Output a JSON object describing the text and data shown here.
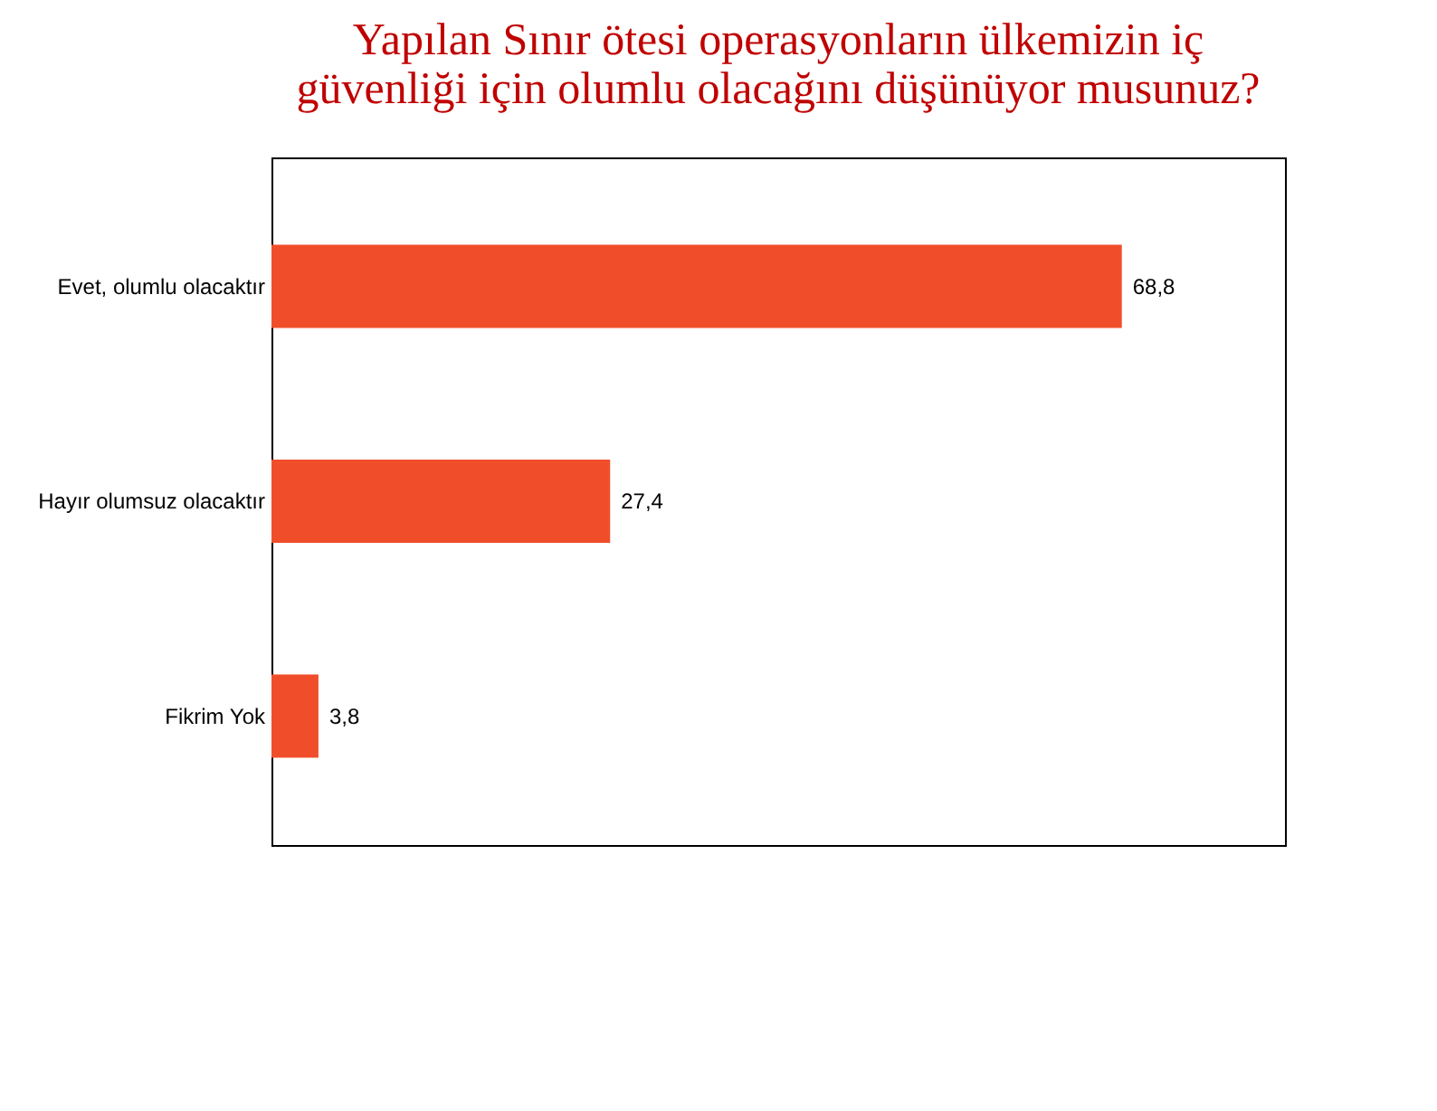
{
  "chart_data": {
    "type": "bar",
    "orientation": "horizontal",
    "title": "Yapılan Sınır ötesi operasyonların ülkemizin iç güvenliği için olumlu olacağını düşünüyor musunuz?",
    "categories": [
      "Evet, olumlu olacaktır",
      "Hayır olumsuz olacaktır",
      "Fikrim Yok"
    ],
    "values": [
      68.8,
      27.4,
      3.8
    ],
    "color": "#f04e2a",
    "value_labels": [
      "68,8",
      "27,4",
      "3,8"
    ],
    "xlim": [
      0,
      82
    ],
    "tick_labels": "y"
  }
}
